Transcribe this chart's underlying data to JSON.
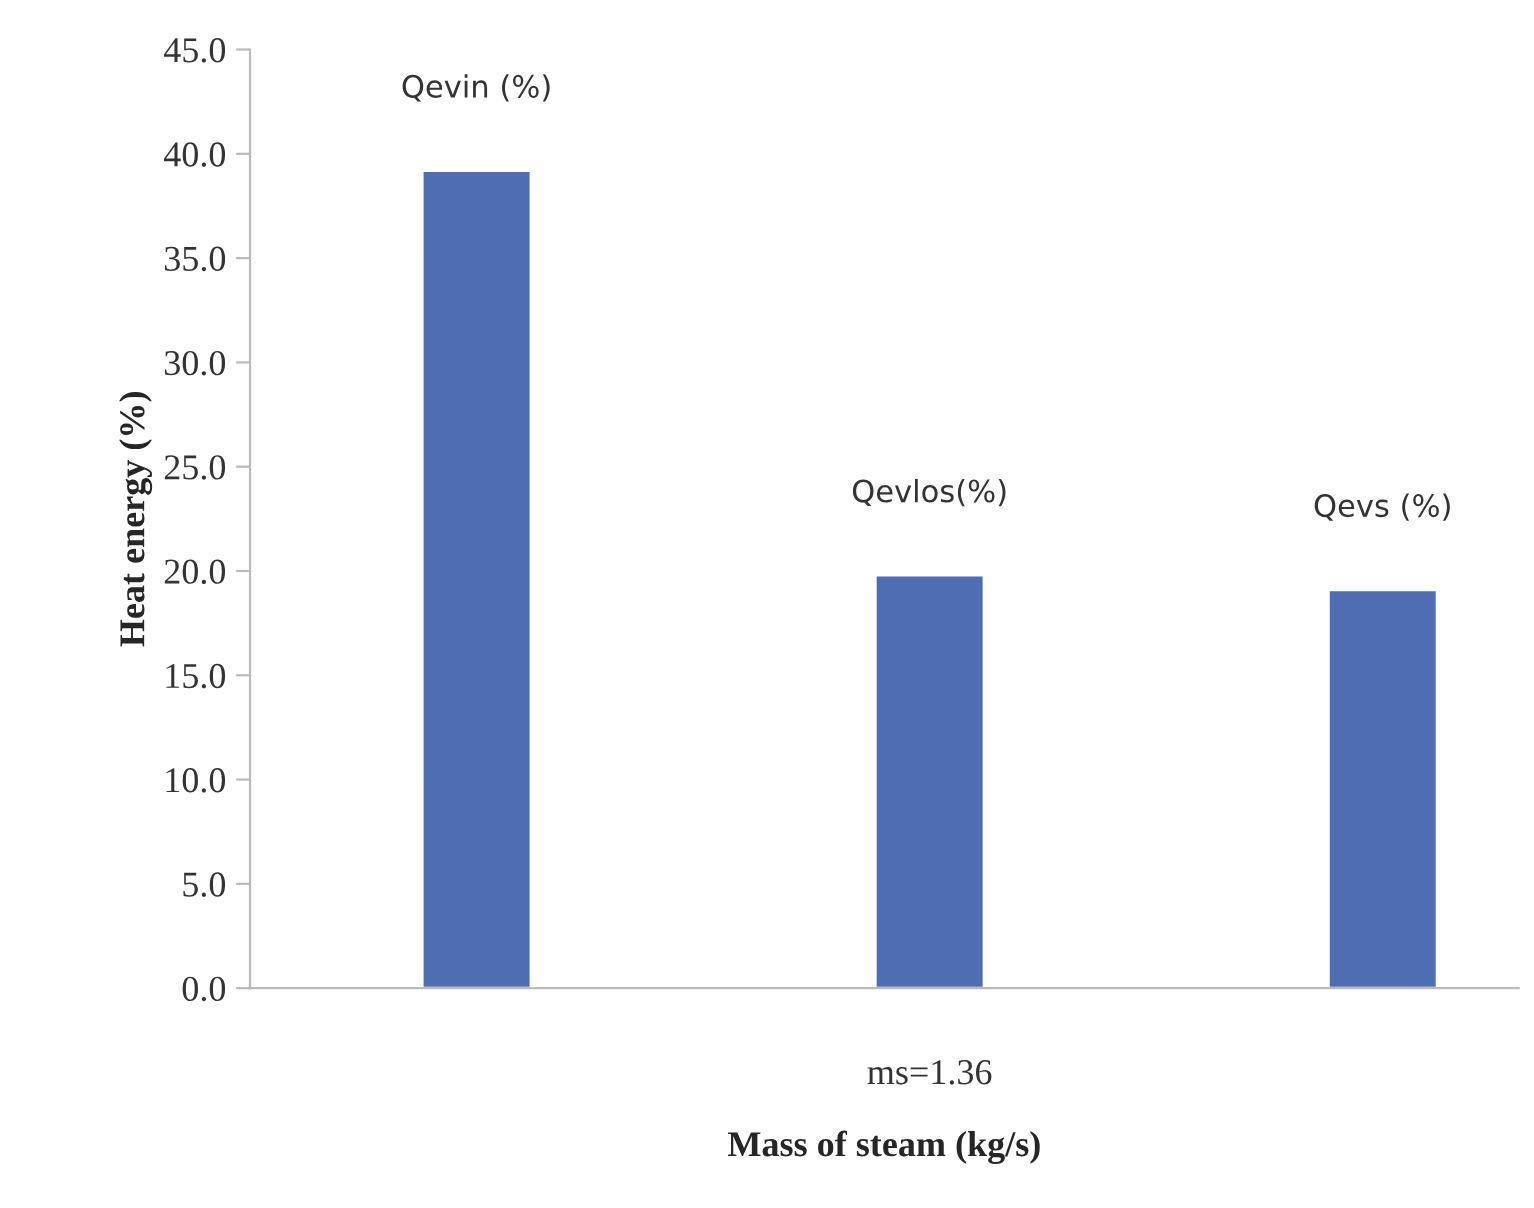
{
  "chart_data": {
    "type": "bar",
    "xlabel": "Mass of steam (kg/s)",
    "ylabel": "Heat energy (%)",
    "categories": [
      "ms=1.36"
    ],
    "series": [
      {
        "name": "Qevin (%)",
        "color": "#4f6db3",
        "values": [
          39.2
        ]
      },
      {
        "name": "Qevlos(%)",
        "color": "#4f6db3",
        "values": [
          19.8
        ]
      },
      {
        "name": "Qevs (%)",
        "color": "#4f6db3",
        "values": [
          19.1
        ]
      }
    ],
    "ylim": [
      0,
      45
    ],
    "yticks": [
      {
        "value": 0,
        "label": "0.0"
      },
      {
        "value": 5,
        "label": "5.0"
      },
      {
        "value": 10,
        "label": "10.0"
      },
      {
        "value": 15,
        "label": "15.0"
      },
      {
        "value": 20,
        "label": "20.0"
      },
      {
        "value": 25,
        "label": "25.0"
      },
      {
        "value": 30,
        "label": "30.0"
      },
      {
        "value": 35,
        "label": "35.0"
      },
      {
        "value": 40,
        "label": "40.0"
      },
      {
        "value": 45,
        "label": "45.0"
      }
    ],
    "grid": false,
    "legend": false
  }
}
